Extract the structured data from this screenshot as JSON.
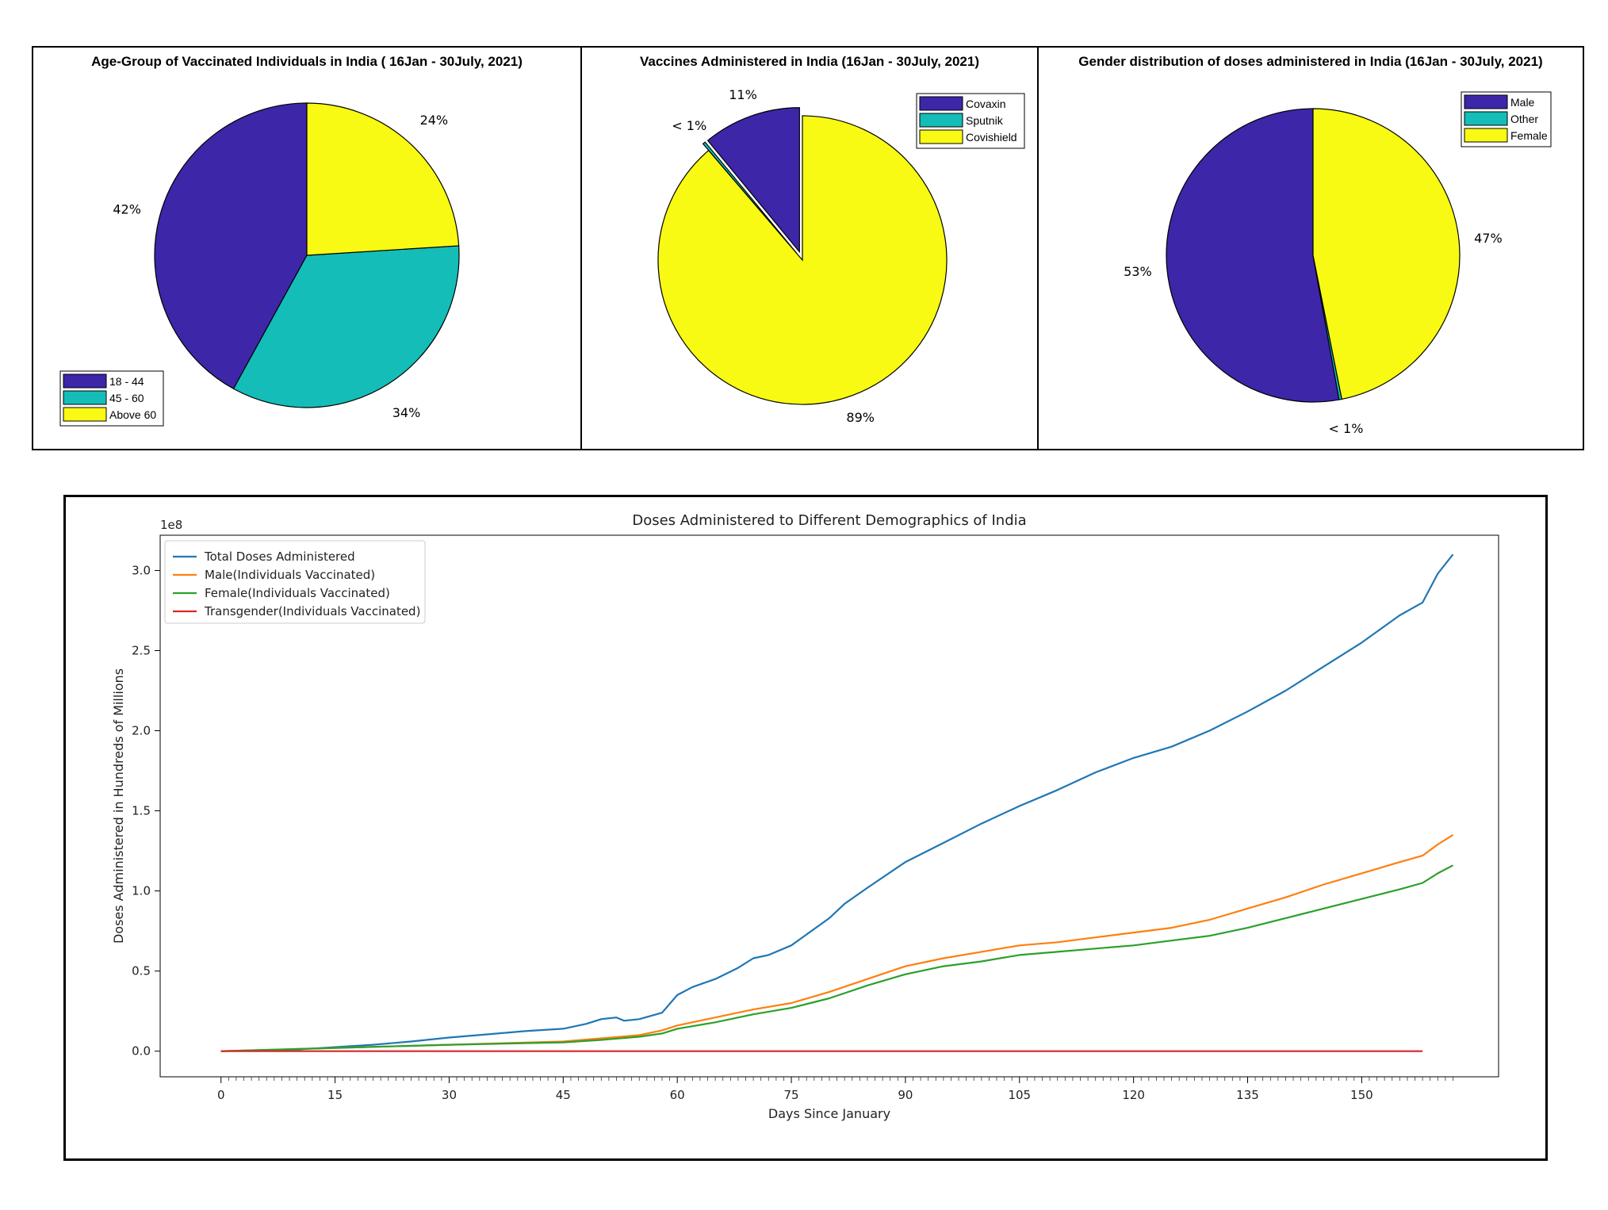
{
  "chart_data": [
    {
      "type": "pie",
      "title": "Age-Group of Vaccinated Individuals in India ( 16Jan - 30July, 2021)",
      "slices": [
        {
          "label": "18 - 44",
          "value": 42,
          "text": "42%",
          "color": "#3d26a8"
        },
        {
          "label": "45 - 60",
          "value": 34,
          "text": "34%",
          "color": "#14bdb8"
        },
        {
          "label": "Above 60",
          "value": 24,
          "text": "24%",
          "color": "#f8fa13"
        }
      ],
      "start_angle_deg": 90,
      "direction": "counterclockwise",
      "legend": {
        "placement": "bottom-left",
        "entries": [
          "18 - 44",
          "45 - 60",
          "Above 60"
        ]
      }
    },
    {
      "type": "pie",
      "title": "Vaccines Administered in India (16Jan - 30July, 2021)",
      "slices": [
        {
          "label": "Covaxin",
          "value": 11,
          "text": "11%",
          "color": "#3d26a8",
          "exploded": true
        },
        {
          "label": "Sputnik",
          "value": 0.3,
          "text": "< 1%",
          "color": "#14bdb8",
          "exploded": true
        },
        {
          "label": "Covishield",
          "value": 89,
          "text": "89%",
          "color": "#f8fa13",
          "exploded": false
        }
      ],
      "start_angle_deg": 90,
      "direction": "counterclockwise",
      "legend": {
        "placement": "top-right",
        "entries": [
          "Covaxin",
          "Sputnik",
          "Covishield"
        ]
      }
    },
    {
      "type": "pie",
      "title": "Gender distribution of doses administered in India (16Jan - 30July, 2021)",
      "slices": [
        {
          "label": "Male",
          "value": 53,
          "text": "53%",
          "color": "#3d26a8"
        },
        {
          "label": "Other",
          "value": 0.3,
          "text": "< 1%",
          "color": "#14bdb8"
        },
        {
          "label": "Female",
          "value": 47,
          "text": "47%",
          "color": "#f8fa13"
        }
      ],
      "start_angle_deg": 90,
      "direction": "counterclockwise",
      "legend": {
        "placement": "top-right",
        "entries": [
          "Male",
          "Other",
          "Female"
        ]
      }
    },
    {
      "type": "line",
      "title": "Doses Administered to Different Demographics of India",
      "xlabel": "Days Since January",
      "ylabel": "Doses Administered in Hundreds of Millions",
      "y_offset_text": "1e8",
      "xlim": [
        -8,
        168
      ],
      "ylim": [
        -0.16,
        3.22
      ],
      "xticks": [
        0,
        15,
        30,
        45,
        60,
        75,
        90,
        105,
        120,
        135,
        150
      ],
      "yticks": [
        0.0,
        0.5,
        1.0,
        1.5,
        2.0,
        2.5,
        3.0
      ],
      "ytick_labels": [
        "0.0",
        "0.5",
        "1.0",
        "1.5",
        "2.0",
        "2.5",
        "3.0"
      ],
      "grid": false,
      "legend": {
        "placement": "top-left"
      },
      "series": [
        {
          "name": "Total Doses Administered",
          "color": "#1f77b4",
          "x": [
            0,
            10,
            15,
            20,
            25,
            30,
            35,
            40,
            45,
            48,
            50,
            52,
            53,
            55,
            58,
            60,
            62,
            65,
            68,
            70,
            72,
            75,
            80,
            82,
            85,
            90,
            95,
            100,
            105,
            110,
            115,
            120,
            125,
            130,
            135,
            140,
            145,
            150,
            155,
            158,
            160,
            162
          ],
          "y": [
            0.0,
            0.01,
            0.025,
            0.04,
            0.06,
            0.085,
            0.105,
            0.125,
            0.14,
            0.17,
            0.2,
            0.21,
            0.19,
            0.2,
            0.24,
            0.35,
            0.4,
            0.45,
            0.52,
            0.58,
            0.6,
            0.66,
            0.83,
            0.92,
            1.02,
            1.18,
            1.3,
            1.42,
            1.53,
            1.63,
            1.74,
            1.83,
            1.9,
            2.0,
            2.12,
            2.25,
            2.4,
            2.55,
            2.72,
            2.8,
            2.98,
            3.1
          ]
        },
        {
          "name": "Male(Individuals Vaccinated)",
          "color": "#ff7f0e",
          "x": [
            0,
            15,
            30,
            45,
            50,
            55,
            58,
            60,
            65,
            70,
            75,
            80,
            85,
            90,
            95,
            100,
            105,
            110,
            115,
            120,
            125,
            130,
            135,
            140,
            145,
            150,
            155,
            158,
            160,
            162
          ],
          "y": [
            0.0,
            0.02,
            0.04,
            0.06,
            0.08,
            0.1,
            0.13,
            0.16,
            0.21,
            0.26,
            0.3,
            0.37,
            0.45,
            0.53,
            0.58,
            0.62,
            0.66,
            0.68,
            0.71,
            0.74,
            0.77,
            0.82,
            0.89,
            0.96,
            1.04,
            1.11,
            1.18,
            1.22,
            1.29,
            1.35
          ]
        },
        {
          "name": "Female(Individuals Vaccinated)",
          "color": "#2ca02c",
          "x": [
            0,
            15,
            30,
            45,
            50,
            55,
            58,
            60,
            65,
            70,
            75,
            80,
            85,
            90,
            95,
            100,
            105,
            110,
            115,
            120,
            125,
            130,
            135,
            140,
            145,
            150,
            155,
            158,
            160,
            162
          ],
          "y": [
            0.0,
            0.02,
            0.04,
            0.055,
            0.07,
            0.09,
            0.11,
            0.14,
            0.18,
            0.23,
            0.27,
            0.33,
            0.41,
            0.48,
            0.53,
            0.56,
            0.6,
            0.62,
            0.64,
            0.66,
            0.69,
            0.72,
            0.77,
            0.83,
            0.89,
            0.95,
            1.01,
            1.05,
            1.11,
            1.16
          ]
        },
        {
          "name": "Transgender(Individuals Vaccinated)",
          "color": "#d62728",
          "x": [
            0,
            158
          ],
          "y": [
            0.0,
            0.0
          ]
        }
      ]
    }
  ]
}
